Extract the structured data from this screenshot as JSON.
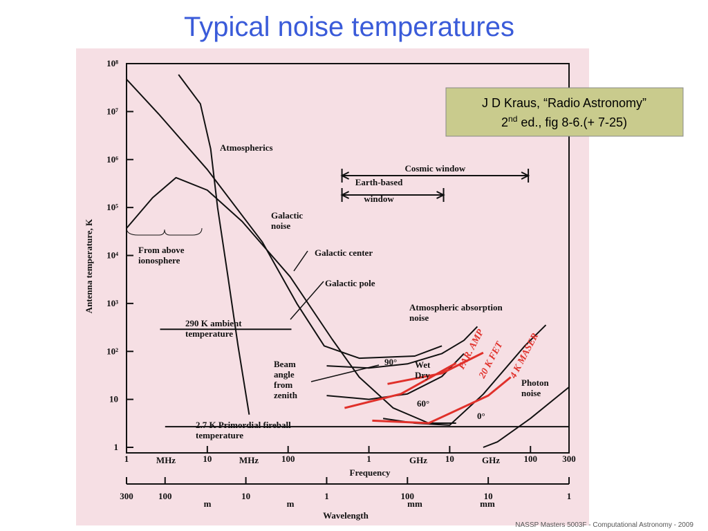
{
  "title": "Typical noise temperatures",
  "citation": {
    "line1": "J D Kraus, “Radio Astronomy”",
    "line2_base": "2",
    "line2_sup": "nd",
    "line2_rest": " ed., fig 8-6.(+ 7-25)"
  },
  "footer": "NASSP Masters 5003F - Computational Astronomy - 2009",
  "chart_data": {
    "type": "line",
    "xlabel": "Frequency",
    "ylabel": "Antenna temperature, K",
    "x2label": "Wavelength",
    "xscale": "log",
    "yscale": "log",
    "x2scale": "log",
    "xlim": [
      1,
      300000
    ],
    "xticks": [
      1,
      10,
      100,
      {
        "value": 1000,
        "label": "1"
      },
      {
        "value": 10000,
        "label": "10"
      },
      {
        "value": 100000,
        "label": "100"
      },
      {
        "value": 300000,
        "label": "300"
      }
    ],
    "x_units": [
      "MHz",
      "MHz",
      "GHz",
      "GHz"
    ],
    "x2lim": [
      300,
      0.001
    ],
    "x2ticks": [
      300,
      100,
      10,
      1,
      {
        "value": 0.1,
        "label": "100"
      },
      {
        "value": 0.01,
        "label": "10"
      },
      {
        "value": 0.001,
        "label": "1"
      }
    ],
    "x2_units": [
      "m",
      "m",
      "mm",
      "mm"
    ],
    "ylim": [
      1,
      100000000
    ],
    "yticks": [
      1,
      10,
      {
        "value": 100,
        "label": "10²"
      },
      {
        "value": 1000,
        "label": "10³"
      },
      {
        "value": 10000,
        "label": "10⁴"
      },
      {
        "value": 100000,
        "label": "10⁵"
      },
      {
        "value": 1000000,
        "label": "10⁶"
      },
      {
        "value": 10000000,
        "label": "10⁷"
      },
      {
        "value": 100000000,
        "label": "10⁸"
      }
    ],
    "series": [
      {
        "color": "#111111",
        "x": [
          4.4,
          8.2,
          11,
          13.4,
          18,
          24,
          33
        ],
        "values": [
          59000000,
          14500000,
          1670000,
          100000,
          3600,
          130,
          4.8
        ]
      },
      {
        "color": "#111111",
        "x": [
          1,
          2.5,
          10,
          48,
          130,
          280,
          760,
          3700,
          8000
        ],
        "values": [
          47000000,
          8900000,
          620000,
          19000,
          960,
          130,
          72,
          80,
          130
        ]
      },
      {
        "color": "#111111",
        "x": [
          1,
          2.1,
          4.1,
          10,
          27,
          106,
          350,
          760,
          2000,
          5500,
          12000
        ],
        "values": [
          37000,
          160000,
          420000,
          230000,
          51000,
          3600,
          180,
          29,
          6.6,
          3.2,
          3.2
        ]
      },
      {
        "color": "#111111",
        "x": [
          300,
          1000,
          3000,
          8000,
          15000,
          22000
        ],
        "values": [
          50,
          45,
          55,
          90,
          170,
          330
        ]
      },
      {
        "color": "#111111",
        "x": [
          300,
          1000,
          3000,
          8000,
          15000
        ],
        "values": [
          12,
          10,
          13,
          30,
          90
        ]
      },
      {
        "color": "#111111",
        "x": [
          1500,
          3700,
          10000,
          26000,
          85000,
          155000
        ],
        "values": [
          4,
          3.2,
          2.9,
          12.8,
          130,
          355
        ]
      },
      {
        "color": "#111111",
        "x": [
          26000,
          39000,
          100000,
          300000
        ],
        "values": [
          1,
          1.3,
          4,
          18
        ]
      },
      {
        "color": "#111111",
        "x": [
          2.6,
          110
        ],
        "values": [
          290,
          290
        ]
      },
      {
        "color": "#111111",
        "x": [
          3,
          1000,
          300000
        ],
        "values": [
          2.7,
          2.7,
          2.7
        ]
      },
      {
        "color": "#e0302a",
        "x": [
          500,
          2500,
          12000
        ],
        "values": [
          6.6,
          13,
          57
        ]
      },
      {
        "color": "#e0302a",
        "x": [
          1700,
          8000,
          26000
        ],
        "values": [
          21,
          35,
          94
        ]
      },
      {
        "color": "#e0302a",
        "x": [
          1100,
          5500,
          30000,
          57000
        ],
        "values": [
          3.6,
          3.2,
          12,
          29
        ]
      }
    ],
    "windows": [
      {
        "label": [
          "Cosmic window"
        ],
        "range": [
          464,
          94000
        ]
      },
      {
        "label": [
          "Earth-based",
          "window"
        ],
        "range": [
          464,
          8400
        ]
      }
    ],
    "annotations": [
      {
        "lines": [
          "Atmospherics"
        ]
      },
      {
        "lines": [
          "Galactic",
          "noise"
        ]
      },
      {
        "lines": [
          "Galactic center"
        ]
      },
      {
        "lines": [
          "Galactic pole"
        ]
      },
      {
        "lines": [
          "Atmospheric absorption",
          "noise"
        ]
      },
      {
        "lines": [
          "From above",
          "ionosphere"
        ]
      },
      {
        "lines": [
          "290 K ambient",
          "temperature"
        ]
      },
      {
        "lines": [
          "2.7 K Primordial fireball",
          "temperature"
        ]
      },
      {
        "lines": [
          "Beam",
          "angle",
          "from",
          "zenith"
        ]
      },
      {
        "lines": [
          "90°"
        ]
      },
      {
        "lines": [
          "60°"
        ]
      },
      {
        "lines": [
          "0°"
        ]
      },
      {
        "lines": [
          "Wet",
          "Dry"
        ]
      },
      {
        "lines": [
          "Photon",
          "noise"
        ]
      },
      {
        "lines": [
          "PAR. AMP"
        ]
      },
      {
        "lines": [
          "20 K FET"
        ]
      },
      {
        "lines": [
          "4 K MASER"
        ]
      }
    ]
  }
}
